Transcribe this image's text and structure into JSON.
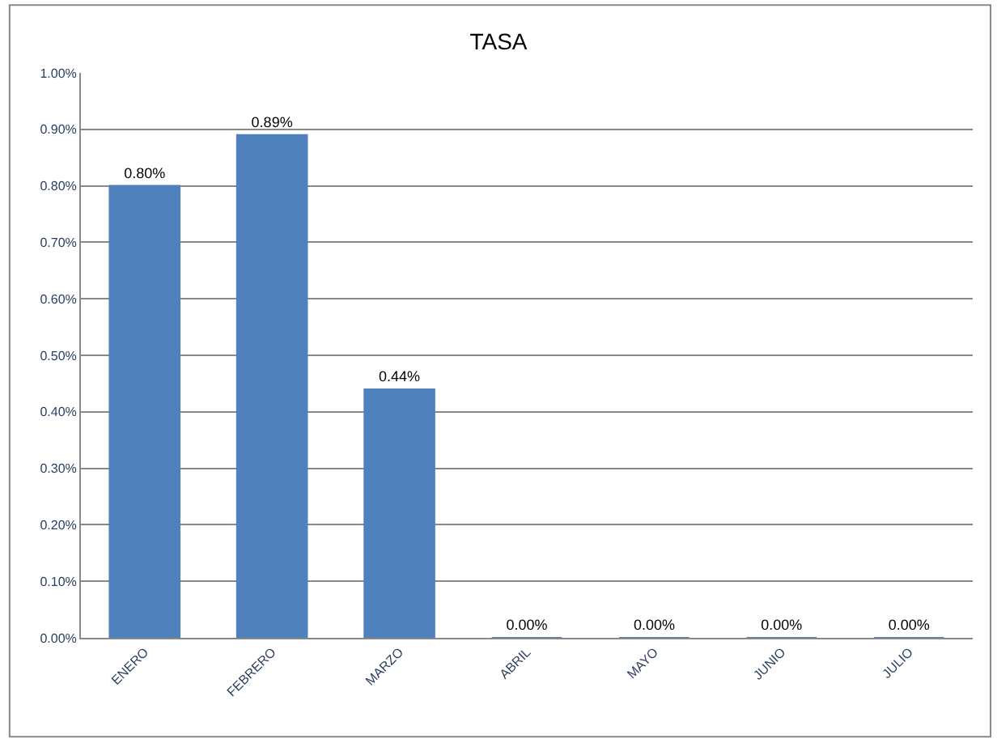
{
  "chart_data": {
    "type": "bar",
    "title": "TASA",
    "categories": [
      "ENERO",
      "FEBRERO",
      "MARZO",
      "ABRIL",
      "MAYO",
      "JUNIO",
      "JULIO"
    ],
    "values": [
      0.8,
      0.89,
      0.44,
      0,
      0,
      0,
      0
    ],
    "value_labels": [
      "0.80%",
      "0.89%",
      "0.44%",
      "0.00%",
      "0.00%",
      "0.00%",
      "0.00%"
    ],
    "color": "#4f81bd",
    "ylim": [
      0,
      1
    ],
    "yticks": [
      {
        "value": 0,
        "label": "0.00%"
      },
      {
        "value": 0.1,
        "label": "0.10%"
      },
      {
        "value": 0.2,
        "label": "0.20%"
      },
      {
        "value": 0.3,
        "label": "0.30%"
      },
      {
        "value": 0.4,
        "label": "0.40%"
      },
      {
        "value": 0.5,
        "label": "0.50%"
      },
      {
        "value": 0.6,
        "label": "0.60%"
      },
      {
        "value": 0.7,
        "label": "0.70%"
      },
      {
        "value": 0.8,
        "label": "0.80%"
      },
      {
        "value": 0.9,
        "label": "0.90%"
      },
      {
        "value": 1,
        "label": "1.00%"
      }
    ],
    "grid": "y",
    "legend": false
  }
}
